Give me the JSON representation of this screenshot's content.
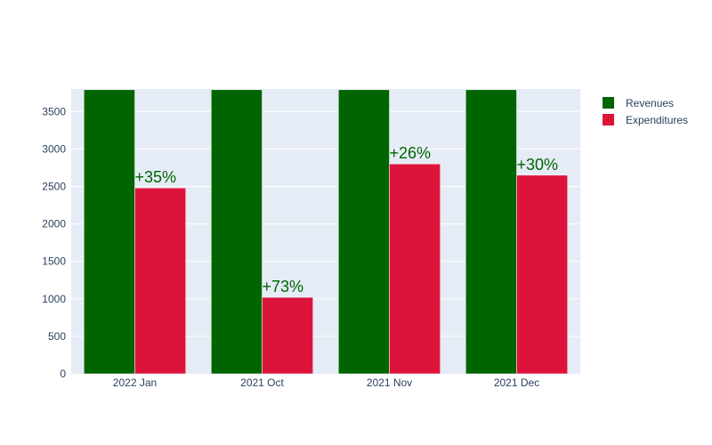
{
  "chart_data": {
    "type": "bar",
    "categories": [
      "2022 Jan",
      "2021 Oct",
      "2021 Nov",
      "2021 Dec"
    ],
    "series": [
      {
        "name": "Revenues",
        "values": [
          3790,
          3790,
          3790,
          3790
        ],
        "color": "#006400"
      },
      {
        "name": "Expenditures",
        "values": [
          2480,
          1020,
          2800,
          2650
        ],
        "color": "#dc143c"
      }
    ],
    "data_labels": [
      "+35%",
      "+73%",
      "+26%",
      "+30%"
    ],
    "data_label_color": "#006400",
    "ylim": [
      0,
      3800
    ],
    "yticks": [
      0,
      500,
      1000,
      1500,
      2000,
      2500,
      3000,
      3500
    ],
    "grid": true,
    "plot_background": "#e5ecf6",
    "legend_position": "top-right"
  }
}
